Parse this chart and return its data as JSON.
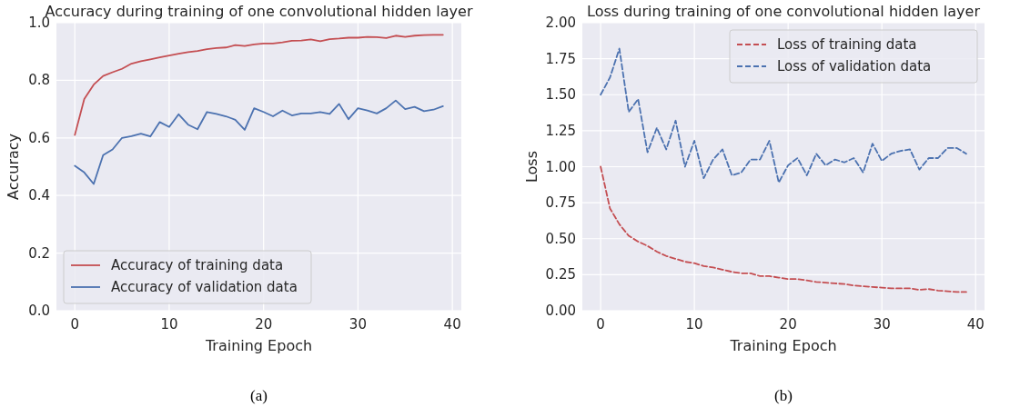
{
  "chart_data": [
    {
      "type": "line",
      "title": "Accuracy during training of one convolutional hidden layer",
      "xlabel": "Training Epoch",
      "ylabel": "Accuracy",
      "annotations": [
        "(a)"
      ],
      "x": [
        0,
        1,
        2,
        3,
        4,
        5,
        6,
        7,
        8,
        9,
        10,
        11,
        12,
        13,
        14,
        15,
        16,
        17,
        18,
        19,
        20,
        21,
        22,
        23,
        24,
        25,
        26,
        27,
        28,
        29,
        30,
        31,
        32,
        33,
        34,
        35,
        36,
        37,
        38,
        39
      ],
      "series": [
        {
          "name": "Accuracy of training data",
          "color": "#c44e52",
          "line_style": "solid",
          "values": [
            0.61,
            0.735,
            0.785,
            0.815,
            0.828,
            0.84,
            0.858,
            0.866,
            0.873,
            0.88,
            0.886,
            0.892,
            0.898,
            0.902,
            0.908,
            0.912,
            0.914,
            0.922,
            0.919,
            0.925,
            0.928,
            0.928,
            0.932,
            0.937,
            0.938,
            0.942,
            0.936,
            0.943,
            0.945,
            0.948,
            0.948,
            0.951,
            0.95,
            0.947,
            0.955,
            0.951,
            0.955,
            0.957,
            0.958,
            0.958
          ]
        },
        {
          "name": "Accuracy of validation data",
          "color": "#4c72b0",
          "line_style": "solid",
          "values": [
            0.503,
            0.48,
            0.44,
            0.54,
            0.56,
            0.6,
            0.606,
            0.615,
            0.605,
            0.655,
            0.638,
            0.682,
            0.646,
            0.63,
            0.69,
            0.683,
            0.675,
            0.663,
            0.628,
            0.703,
            0.69,
            0.675,
            0.695,
            0.678,
            0.685,
            0.685,
            0.69,
            0.683,
            0.718,
            0.665,
            0.703,
            0.695,
            0.685,
            0.703,
            0.73,
            0.7,
            0.708,
            0.693,
            0.698,
            0.71
          ]
        }
      ],
      "xlim": [
        -1.95,
        40.95
      ],
      "xticks": [
        0,
        10,
        20,
        30,
        40
      ],
      "ylim": [
        0,
        1
      ],
      "yticks": [
        {
          "value": 0,
          "label": "0.0"
        },
        {
          "value": 0.2,
          "label": "0.2"
        },
        {
          "value": 0.4,
          "label": "0.4"
        },
        {
          "value": 0.6,
          "label": "0.6"
        },
        {
          "value": 0.8,
          "label": "0.8"
        },
        {
          "value": 1,
          "label": "1.0"
        }
      ],
      "grid": true,
      "legend": "bottom left",
      "marker": "none"
    },
    {
      "type": "line",
      "title": "Loss during training of one convolutional hidden layer",
      "xlabel": "Training Epoch",
      "ylabel": "Loss",
      "annotations": [
        "(b)"
      ],
      "x": [
        0,
        1,
        2,
        3,
        4,
        5,
        6,
        7,
        8,
        9,
        10,
        11,
        12,
        13,
        14,
        15,
        16,
        17,
        18,
        19,
        20,
        21,
        22,
        23,
        24,
        25,
        26,
        27,
        28,
        29,
        30,
        31,
        32,
        33,
        34,
        35,
        36,
        37,
        38,
        39
      ],
      "series": [
        {
          "name": "Loss of training data",
          "color": "#c44e52",
          "line_style": "dashed",
          "values": [
            1.0,
            0.71,
            0.6,
            0.52,
            0.48,
            0.45,
            0.41,
            0.38,
            0.36,
            0.34,
            0.33,
            0.31,
            0.3,
            0.285,
            0.27,
            0.26,
            0.26,
            0.24,
            0.24,
            0.23,
            0.22,
            0.22,
            0.21,
            0.2,
            0.195,
            0.19,
            0.185,
            0.175,
            0.17,
            0.165,
            0.16,
            0.155,
            0.155,
            0.155,
            0.145,
            0.15,
            0.14,
            0.135,
            0.13,
            0.13
          ]
        },
        {
          "name": "Loss of validation data",
          "color": "#4c72b0",
          "line_style": "dashed",
          "values": [
            1.5,
            1.62,
            1.82,
            1.38,
            1.47,
            1.1,
            1.27,
            1.12,
            1.32,
            1.0,
            1.18,
            0.92,
            1.05,
            1.12,
            0.94,
            0.96,
            1.05,
            1.05,
            1.18,
            0.89,
            1.01,
            1.06,
            0.94,
            1.09,
            1.01,
            1.05,
            1.03,
            1.06,
            0.96,
            1.16,
            1.04,
            1.09,
            1.11,
            1.12,
            0.98,
            1.06,
            1.06,
            1.13,
            1.13,
            1.09
          ]
        }
      ],
      "xlim": [
        -1.95,
        40.95
      ],
      "xticks": [
        0,
        10,
        20,
        30,
        40
      ],
      "ylim": [
        0,
        2
      ],
      "yticks": [
        {
          "value": 0,
          "label": "0.00"
        },
        {
          "value": 0.25,
          "label": "0.25"
        },
        {
          "value": 0.5,
          "label": "0.50"
        },
        {
          "value": 0.75,
          "label": "0.75"
        },
        {
          "value": 1,
          "label": "1.00"
        },
        {
          "value": 1.25,
          "label": "1.25"
        },
        {
          "value": 1.5,
          "label": "1.50"
        },
        {
          "value": 1.75,
          "label": "1.75"
        },
        {
          "value": 2,
          "label": "2.00"
        }
      ],
      "grid": true,
      "legend": "top right",
      "marker": "none"
    }
  ]
}
